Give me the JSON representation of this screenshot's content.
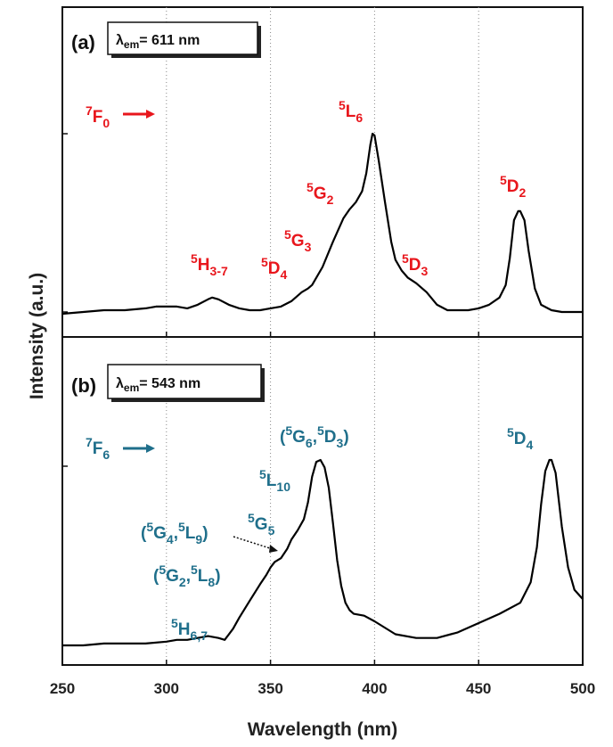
{
  "chart_data": {
    "type": "line",
    "xlabel": "Wavelength (nm)",
    "ylabel": "Intensity (a.u.)",
    "xlim": [
      250,
      500
    ],
    "x_ticks": [
      "250",
      "300",
      "350",
      "400",
      "450",
      "500"
    ],
    "grid": "dotted vertical lines at 300, 350, 400, 450",
    "colors": {
      "panel_a": "#e8161c",
      "panel_b": "#1f6f8b",
      "line": "#000000"
    },
    "panels": [
      {
        "panel_label": "(a)",
        "lambda_sym": "λ",
        "lambda_sub": "em",
        "lambda_val": "= 611 nm",
        "ground_state": {
          "sup": "7",
          "base": "F",
          "sub": "0"
        },
        "x": [
          250,
          260,
          270,
          280,
          290,
          295,
          300,
          305,
          310,
          315,
          320,
          322,
          325,
          330,
          335,
          340,
          345,
          350,
          355,
          360,
          365,
          368,
          370,
          375,
          380,
          385,
          388,
          391,
          394,
          396,
          398,
          399,
          400,
          402,
          405,
          408,
          410,
          413,
          416,
          420,
          425,
          430,
          435,
          440,
          445,
          450,
          455,
          460,
          463,
          465,
          467,
          469,
          470,
          472,
          474,
          477,
          480,
          485,
          490,
          495,
          500
        ],
        "y": [
          0.0,
          0.01,
          0.02,
          0.02,
          0.03,
          0.04,
          0.04,
          0.04,
          0.03,
          0.05,
          0.08,
          0.09,
          0.08,
          0.05,
          0.03,
          0.02,
          0.02,
          0.03,
          0.04,
          0.07,
          0.12,
          0.14,
          0.16,
          0.26,
          0.4,
          0.53,
          0.58,
          0.62,
          0.68,
          0.78,
          0.94,
          1.0,
          0.99,
          0.85,
          0.62,
          0.4,
          0.3,
          0.24,
          0.2,
          0.17,
          0.12,
          0.05,
          0.02,
          0.02,
          0.02,
          0.03,
          0.05,
          0.09,
          0.16,
          0.31,
          0.52,
          0.57,
          0.57,
          0.52,
          0.35,
          0.14,
          0.05,
          0.02,
          0.01,
          0.01,
          0.01
        ],
        "annotations": [
          {
            "id": "H3-7",
            "sup": "5",
            "base": "H",
            "sub": "3-7",
            "x": 323
          },
          {
            "id": "D4",
            "sup": "5",
            "base": "D",
            "sub": "4",
            "x": 362
          },
          {
            "id": "G3",
            "sup": "5",
            "base": "G",
            "sub": "3",
            "x": 368
          },
          {
            "id": "G2",
            "sup": "5",
            "base": "G",
            "sub": "2",
            "x": 385
          },
          {
            "id": "L6",
            "sup": "5",
            "base": "L",
            "sub": "6",
            "x": 399
          },
          {
            "id": "D3",
            "sup": "5",
            "base": "D",
            "sub": "3",
            "x": 416
          },
          {
            "id": "D2",
            "sup": "5",
            "base": "D",
            "sub": "2",
            "x": 469
          }
        ]
      },
      {
        "panel_label": "(b)",
        "lambda_sym": "λ",
        "lambda_sub": "em",
        "lambda_val": "= 543 nm",
        "ground_state": {
          "sup": "7",
          "base": "F",
          "sub": "6"
        },
        "x": [
          250,
          260,
          270,
          280,
          290,
          300,
          305,
          310,
          315,
          320,
          325,
          328,
          332,
          335,
          340,
          345,
          348,
          350,
          352,
          355,
          358,
          360,
          363,
          366,
          368,
          370,
          372,
          374,
          376,
          378,
          380,
          382,
          384,
          386,
          388,
          390,
          395,
          400,
          410,
          420,
          430,
          440,
          450,
          460,
          470,
          475,
          478,
          480,
          482,
          484,
          485,
          487,
          490,
          493,
          496,
          500
        ],
        "y": [
          0.0,
          0.0,
          0.01,
          0.01,
          0.01,
          0.02,
          0.03,
          0.03,
          0.04,
          0.05,
          0.04,
          0.03,
          0.09,
          0.15,
          0.24,
          0.33,
          0.38,
          0.42,
          0.45,
          0.47,
          0.52,
          0.57,
          0.62,
          0.68,
          0.77,
          0.91,
          0.99,
          1.0,
          0.96,
          0.85,
          0.66,
          0.46,
          0.32,
          0.23,
          0.19,
          0.17,
          0.16,
          0.13,
          0.06,
          0.04,
          0.04,
          0.07,
          0.12,
          0.17,
          0.23,
          0.34,
          0.53,
          0.76,
          0.94,
          1.0,
          1.0,
          0.93,
          0.64,
          0.42,
          0.3,
          0.25
        ],
        "annotations": [
          {
            "id": "H67",
            "text_parts": [
              [
                "sup",
                "5"
              ],
              [
                "base",
                "H"
              ],
              [
                "sub",
                "6,7"
              ]
            ]
          },
          {
            "id": "G2L8",
            "text_parts": [
              [
                "base",
                "("
              ],
              [
                "sup",
                "5"
              ],
              [
                "base",
                "G"
              ],
              [
                "sub",
                "2"
              ],
              [
                "base",
                ","
              ],
              [
                "sup",
                "5"
              ],
              [
                "base",
                "L"
              ],
              [
                "sub",
                "8"
              ],
              [
                "base",
                ")"
              ]
            ]
          },
          {
            "id": "G4L9",
            "text_parts": [
              [
                "base",
                "("
              ],
              [
                "sup",
                "5"
              ],
              [
                "base",
                "G"
              ],
              [
                "sub",
                "4"
              ],
              [
                "base",
                ","
              ],
              [
                "sup",
                "5"
              ],
              [
                "base",
                "L"
              ],
              [
                "sub",
                "9"
              ],
              [
                "base",
                ")"
              ]
            ]
          },
          {
            "id": "G5",
            "text_parts": [
              [
                "sup",
                "5"
              ],
              [
                "base",
                "G"
              ],
              [
                "sub",
                "5"
              ]
            ]
          },
          {
            "id": "L10",
            "text_parts": [
              [
                "sup",
                "5"
              ],
              [
                "base",
                "L"
              ],
              [
                "sub",
                "10"
              ]
            ]
          },
          {
            "id": "G6D3",
            "text_parts": [
              [
                "base",
                "("
              ],
              [
                "sup",
                "5"
              ],
              [
                "base",
                "G"
              ],
              [
                "sub",
                "6"
              ],
              [
                "base",
                ","
              ],
              [
                "sup",
                "5"
              ],
              [
                "base",
                "D"
              ],
              [
                "sub",
                "3"
              ],
              [
                "base",
                ")"
              ]
            ]
          },
          {
            "id": "D4b",
            "text_parts": [
              [
                "sup",
                "5"
              ],
              [
                "base",
                "D"
              ],
              [
                "sub",
                "4"
              ]
            ]
          }
        ]
      }
    ]
  }
}
